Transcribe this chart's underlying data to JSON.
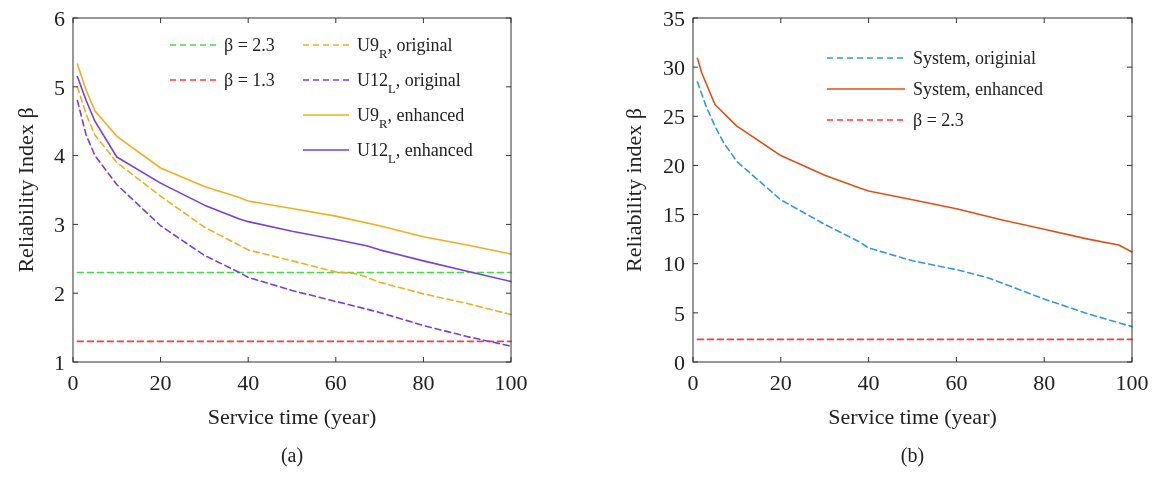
{
  "chart_data": [
    {
      "type": "line",
      "title": "(a)",
      "xlabel": "Service time (year)",
      "ylabel": "Reliability Index β",
      "xlim": [
        0,
        100
      ],
      "xticks": [
        0,
        20,
        40,
        60,
        80,
        100
      ],
      "ylim": [
        1,
        6
      ],
      "yticks": [
        1,
        2,
        3,
        4,
        5,
        6
      ],
      "grid": false,
      "legend": "top right",
      "series": [
        {
          "name": "β = 2.3",
          "color": "#44dd44",
          "line_style": "dashed",
          "x": [
            1,
            100
          ],
          "values": [
            2.3,
            2.3
          ]
        },
        {
          "name": "β = 1.3",
          "color": "#ff3b3b",
          "line_style": "dashed",
          "x": [
            1,
            100
          ],
          "values": [
            1.3,
            1.3
          ]
        },
        {
          "name": "U9$_{R}$, original",
          "color": "#edb120",
          "line_style": "dashed",
          "x": [
            1,
            3,
            5,
            10,
            20,
            30,
            40,
            50,
            60,
            65,
            70,
            80,
            90,
            100
          ],
          "values": [
            5.0,
            4.6,
            4.3,
            3.9,
            3.41,
            2.96,
            2.63,
            2.47,
            2.31,
            2.28,
            2.16,
            1.99,
            1.85,
            1.69
          ]
        },
        {
          "name": "U12$_{L}$, original",
          "color": "#7b3fd8",
          "line_style": "dashed",
          "x": [
            1,
            3,
            5,
            10,
            20,
            30,
            38,
            40,
            50,
            60,
            67,
            70,
            80,
            90,
            100
          ],
          "values": [
            4.8,
            4.3,
            4.0,
            3.58,
            2.98,
            2.55,
            2.3,
            2.23,
            2.04,
            1.88,
            1.77,
            1.72,
            1.53,
            1.37,
            1.23
          ]
        },
        {
          "name": "U9$_{R}$, enhanced",
          "color": "#edb120",
          "line_style": "solid",
          "x": [
            1,
            3,
            5,
            10,
            20,
            30,
            38,
            40,
            50,
            60,
            70,
            80,
            90,
            100
          ],
          "values": [
            5.33,
            4.95,
            4.65,
            4.28,
            3.82,
            3.55,
            3.39,
            3.34,
            3.23,
            3.12,
            2.98,
            2.82,
            2.7,
            2.57
          ]
        },
        {
          "name": "U12$_{L}$, enhanced",
          "color": "#7b3fd8",
          "line_style": "solid",
          "x": [
            1,
            3,
            5,
            10,
            20,
            30,
            38,
            40,
            50,
            60,
            67,
            70,
            80,
            90,
            100
          ],
          "values": [
            5.15,
            4.8,
            4.5,
            3.98,
            3.6,
            3.28,
            3.08,
            3.04,
            2.9,
            2.78,
            2.69,
            2.63,
            2.47,
            2.32,
            2.17
          ]
        }
      ]
    },
    {
      "type": "line",
      "title": "(b)",
      "xlabel": "Service time (year)",
      "ylabel": "Reliability index β",
      "xlim": [
        0,
        100
      ],
      "xticks": [
        0,
        20,
        40,
        60,
        80,
        100
      ],
      "ylim": [
        0,
        35
      ],
      "yticks": [
        0,
        5,
        10,
        15,
        20,
        25,
        30,
        35
      ],
      "grid": false,
      "legend": "top right",
      "series": [
        {
          "name": "System, originial",
          "color": "#3399dd",
          "line_style": "dashed",
          "x": [
            1,
            3,
            5,
            7,
            10,
            20,
            30,
            38,
            40,
            50,
            60,
            67,
            70,
            80,
            90,
            100
          ],
          "values": [
            28.5,
            26.0,
            24.0,
            22.3,
            20.4,
            16.5,
            14.0,
            12.2,
            11.6,
            10.3,
            9.4,
            8.6,
            8.1,
            6.4,
            4.9,
            3.6
          ]
        },
        {
          "name": "System, enhanced",
          "color": "#d95319",
          "line_style": "solid",
          "x": [
            1,
            2,
            5,
            10,
            20,
            30,
            38,
            40,
            50,
            60,
            70,
            80,
            90,
            97,
            100
          ],
          "values": [
            30.9,
            29.4,
            26.2,
            24.0,
            21.0,
            19.0,
            17.7,
            17.4,
            16.5,
            15.6,
            14.5,
            13.5,
            12.5,
            11.9,
            11.2
          ]
        },
        {
          "name": "β = 2.3",
          "color": "#ff3b3b",
          "line_style": "dashed",
          "x": [
            1,
            100
          ],
          "values": [
            2.3,
            2.3
          ]
        }
      ]
    }
  ]
}
